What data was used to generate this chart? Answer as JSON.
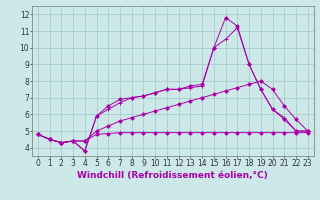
{
  "background_color": "#cce8e8",
  "grid_color": "#aacccc",
  "line_color": "#aa00aa",
  "xlabel": "Windchill (Refroidissement éolien,°C)",
  "xlabel_fontsize": 6.5,
  "tick_fontsize": 5.5,
  "ylim": [
    3.5,
    12.5
  ],
  "xlim": [
    -0.5,
    23.5
  ],
  "yticks": [
    4,
    5,
    6,
    7,
    8,
    9,
    10,
    11,
    12
  ],
  "xticks": [
    0,
    1,
    2,
    3,
    4,
    5,
    6,
    7,
    8,
    9,
    10,
    11,
    12,
    13,
    14,
    15,
    16,
    17,
    18,
    19,
    20,
    21,
    22,
    23
  ],
  "lines": [
    {
      "x": [
        0,
        1,
        2,
        3,
        4,
        5,
        6,
        7,
        8,
        9,
        10,
        11,
        12,
        13,
        14,
        15,
        16,
        17,
        18,
        19,
        20,
        21,
        22,
        23
      ],
      "y": [
        4.8,
        4.5,
        4.3,
        4.4,
        4.4,
        4.8,
        4.85,
        4.9,
        4.9,
        4.9,
        4.9,
        4.9,
        4.9,
        4.9,
        4.9,
        4.9,
        4.9,
        4.9,
        4.9,
        4.9,
        4.9,
        4.9,
        4.9,
        4.9
      ],
      "marker": "D",
      "markersize": 1.8,
      "lw": 0.7
    },
    {
      "x": [
        0,
        1,
        2,
        3,
        4,
        5,
        6,
        7,
        8,
        9,
        10,
        11,
        12,
        13,
        14,
        15,
        16,
        17,
        18,
        19,
        20,
        21,
        22,
        23
      ],
      "y": [
        4.8,
        4.5,
        4.3,
        4.4,
        4.4,
        5.0,
        5.3,
        5.6,
        5.8,
        6.0,
        6.2,
        6.4,
        6.6,
        6.8,
        7.0,
        7.2,
        7.4,
        7.6,
        7.8,
        8.0,
        7.5,
        6.5,
        5.7,
        5.0
      ],
      "marker": "D",
      "markersize": 1.8,
      "lw": 0.7
    },
    {
      "x": [
        0,
        1,
        2,
        3,
        4,
        5,
        6,
        7,
        8,
        9,
        10,
        11,
        12,
        13,
        14,
        15,
        16,
        17,
        18,
        19,
        20,
        21,
        22,
        23
      ],
      "y": [
        4.8,
        4.5,
        4.3,
        4.4,
        3.8,
        5.9,
        6.3,
        6.7,
        7.0,
        7.1,
        7.3,
        7.5,
        7.5,
        7.6,
        7.7,
        10.0,
        10.5,
        11.2,
        9.0,
        7.5,
        6.3,
        5.8,
        5.0,
        5.0
      ],
      "marker": "+",
      "markersize": 3.5,
      "lw": 0.7
    },
    {
      "x": [
        0,
        1,
        2,
        3,
        4,
        5,
        6,
        7,
        8,
        9,
        10,
        11,
        12,
        13,
        14,
        15,
        16,
        17,
        18,
        19,
        20,
        21,
        22,
        23
      ],
      "y": [
        4.8,
        4.5,
        4.3,
        4.4,
        3.8,
        5.9,
        6.5,
        6.9,
        7.0,
        7.1,
        7.3,
        7.5,
        7.5,
        7.7,
        7.8,
        10.0,
        11.8,
        11.3,
        9.0,
        7.5,
        6.3,
        5.7,
        5.0,
        5.0
      ],
      "marker": "D",
      "markersize": 1.8,
      "lw": 0.7
    }
  ]
}
